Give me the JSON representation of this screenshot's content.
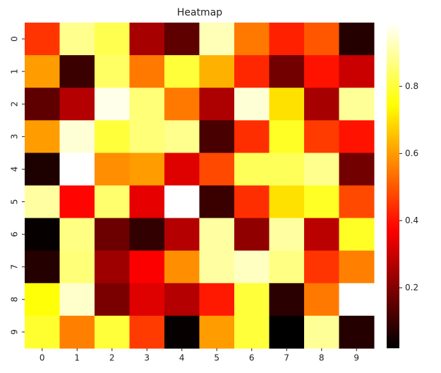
{
  "chart_data": {
    "type": "heatmap",
    "title": "Heatmap",
    "x_categories": [
      "0",
      "1",
      "2",
      "3",
      "4",
      "5",
      "6",
      "7",
      "8",
      "9"
    ],
    "y_categories": [
      "0",
      "1",
      "2",
      "3",
      "4",
      "5",
      "6",
      "7",
      "8",
      "9"
    ],
    "colormap": "hot",
    "zlim": [
      0.02,
      0.99
    ],
    "colorbar_ticks": [
      0.2,
      0.4,
      0.6,
      0.8
    ],
    "values": [
      [
        0.45,
        0.88,
        0.82,
        0.25,
        0.15,
        0.92,
        0.55,
        0.42,
        0.5,
        0.07
      ],
      [
        0.6,
        0.1,
        0.84,
        0.55,
        0.8,
        0.63,
        0.43,
        0.18,
        0.4,
        0.3
      ],
      [
        0.15,
        0.27,
        0.97,
        0.86,
        0.55,
        0.26,
        0.95,
        0.7,
        0.25,
        0.89
      ],
      [
        0.6,
        0.95,
        0.8,
        0.86,
        0.88,
        0.12,
        0.44,
        0.78,
        0.46,
        0.4
      ],
      [
        0.06,
        0.99,
        0.58,
        0.6,
        0.33,
        0.48,
        0.83,
        0.83,
        0.88,
        0.18
      ],
      [
        0.9,
        0.38,
        0.85,
        0.34,
        0.99,
        0.1,
        0.44,
        0.7,
        0.78,
        0.48
      ],
      [
        0.03,
        0.87,
        0.17,
        0.09,
        0.27,
        0.9,
        0.22,
        0.9,
        0.28,
        0.78
      ],
      [
        0.07,
        0.86,
        0.24,
        0.37,
        0.58,
        0.9,
        0.93,
        0.87,
        0.45,
        0.56
      ],
      [
        0.75,
        0.94,
        0.19,
        0.33,
        0.27,
        0.41,
        0.8,
        0.08,
        0.55,
        0.99
      ],
      [
        0.79,
        0.56,
        0.8,
        0.46,
        0.03,
        0.6,
        0.8,
        0.02,
        0.89,
        0.07
      ]
    ]
  }
}
